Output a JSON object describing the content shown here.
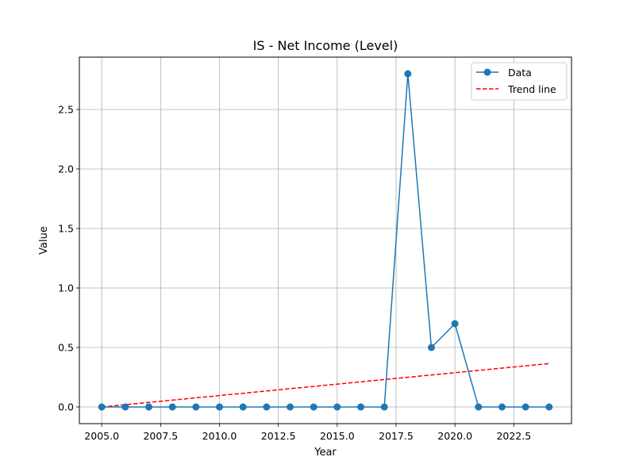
{
  "chart_data": {
    "type": "line",
    "title": "IS - Net Income (Level)",
    "xlabel": "Year",
    "ylabel": "Value",
    "xlim": [
      2004.05,
      2024.95
    ],
    "ylim": [
      -0.14,
      2.94
    ],
    "xticks": [
      2005.0,
      2007.5,
      2010.0,
      2012.5,
      2015.0,
      2017.5,
      2020.0,
      2022.5
    ],
    "xtick_labels": [
      "2005.0",
      "2007.5",
      "2010.0",
      "2012.5",
      "2015.0",
      "2017.5",
      "2020.0",
      "2022.5"
    ],
    "yticks": [
      0.0,
      0.5,
      1.0,
      1.5,
      2.0,
      2.5
    ],
    "ytick_labels": [
      "0.0",
      "0.5",
      "1.0",
      "1.5",
      "2.0",
      "2.5"
    ],
    "grid": true,
    "legend_position": "top-right",
    "series": [
      {
        "name": "Data",
        "style": "line-marker",
        "color": "#1f77b4",
        "x": [
          2005,
          2006,
          2007,
          2008,
          2009,
          2010,
          2011,
          2012,
          2013,
          2014,
          2015,
          2016,
          2017,
          2018,
          2019,
          2020,
          2021,
          2022,
          2023,
          2024
        ],
        "y": [
          0,
          0,
          0,
          0,
          0,
          0,
          0,
          0,
          0,
          0,
          0,
          0,
          0,
          2.8,
          0.5,
          0.7,
          0,
          0,
          0,
          0
        ]
      },
      {
        "name": "Trend line",
        "style": "dashed",
        "color": "#ff0000",
        "x": [
          2005,
          2024
        ],
        "y": [
          0.0,
          0.365
        ]
      }
    ]
  }
}
